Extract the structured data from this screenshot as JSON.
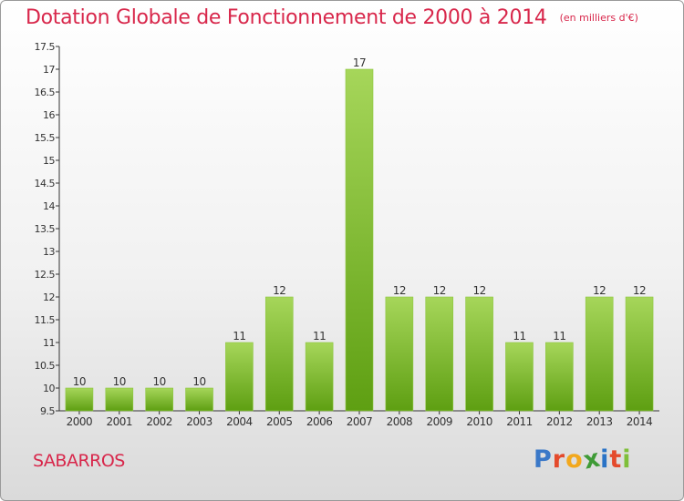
{
  "title": "Dotation Globale de Fonctionnement de 2000 à 2014",
  "unit": "(en milliers d'€)",
  "commune": "SABARROS",
  "brand": "Proxiti",
  "colors": {
    "title": "#d8274b",
    "bar_light": "#a6d65a",
    "bar_dark": "#5e9f12",
    "brand_letters": [
      "#3a78c8",
      "#e44a2c",
      "#f2a81d",
      "#3f9b37",
      "#2a73c6",
      "#e44a2c",
      "#7fbf3a"
    ]
  },
  "chart_data": {
    "type": "bar",
    "categories": [
      "2000",
      "2001",
      "2002",
      "2003",
      "2004",
      "2005",
      "2006",
      "2007",
      "2008",
      "2009",
      "2010",
      "2011",
      "2012",
      "2013",
      "2014"
    ],
    "values": [
      10,
      10,
      10,
      10,
      11,
      12,
      11,
      17,
      12,
      12,
      12,
      11,
      11,
      12,
      12
    ],
    "ylim": [
      9.5,
      17.5
    ],
    "yticks": [
      "9.5",
      "10",
      "10.5",
      "11",
      "11.5",
      "12",
      "12.5",
      "13",
      "13.5",
      "14",
      "14.5",
      "15",
      "15.5",
      "16",
      "16.5",
      "17",
      "17.5"
    ],
    "grid": false
  }
}
